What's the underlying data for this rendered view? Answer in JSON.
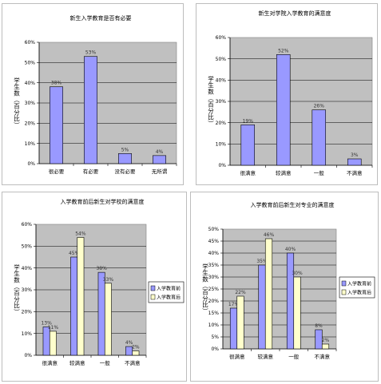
{
  "chart_data": [
    {
      "type": "bar",
      "title": "新生入学教育是否有必要",
      "ylabel": "学生数（百分比）",
      "categories": [
        "很必要",
        "有必要",
        "没有必要",
        "无所谓"
      ],
      "series": [
        {
          "values": [
            38,
            53,
            5,
            4
          ],
          "labels": [
            "38%",
            "53%",
            "5%",
            "4%"
          ]
        }
      ],
      "ylim": [
        0,
        60
      ],
      "yticks": [
        "0%",
        "10%",
        "20%",
        "30%",
        "40%",
        "50%",
        "60%"
      ],
      "grid": true,
      "colors": {
        "series": [
          "#9999ff"
        ],
        "plot_bg": "#c0c0c0"
      }
    },
    {
      "type": "bar",
      "title": "新生对学院入学教育的满意度",
      "ylabel": "学生数（百分比）",
      "categories": [
        "很满意",
        "较满意",
        "一般",
        "不满意"
      ],
      "series": [
        {
          "values": [
            19,
            52,
            26,
            3
          ],
          "labels": [
            "19%",
            "52%",
            "26%",
            "3%"
          ]
        }
      ],
      "ylim": [
        0,
        60
      ],
      "yticks": [
        "0%",
        "10%",
        "20%",
        "30%",
        "40%",
        "50%",
        "60%"
      ],
      "grid": true,
      "colors": {
        "series": [
          "#9999ff"
        ],
        "plot_bg": "#c0c0c0"
      }
    },
    {
      "type": "bar",
      "title": "入学教育前后新生对学校的满意度",
      "ylabel": "学生数（百分比）",
      "categories": [
        "很满意",
        "较满意",
        "一般",
        "不满意"
      ],
      "series": [
        {
          "name": "入学教育前",
          "values": [
            13,
            45,
            38,
            4
          ],
          "labels": [
            "13%",
            "45%",
            "38%",
            "4%"
          ]
        },
        {
          "name": "入学教育后",
          "values": [
            11,
            54,
            33,
            2
          ],
          "labels": [
            "11%",
            "54%",
            "33%",
            "2%"
          ]
        }
      ],
      "ylim": [
        0,
        60
      ],
      "yticks": [
        "0%",
        "10%",
        "20%",
        "30%",
        "40%",
        "50%",
        "60%"
      ],
      "grid": true,
      "legend": "right",
      "colors": {
        "series": [
          "#9999ff",
          "#ffffcc"
        ],
        "plot_bg": "#c0c0c0"
      }
    },
    {
      "type": "bar",
      "title": "入学教育前后新生对专业的满意度",
      "ylabel": "学生数（百分比）",
      "categories": [
        "很满意",
        "较满意",
        "一般",
        "不满意"
      ],
      "series": [
        {
          "name": "入学教育前",
          "values": [
            17,
            35,
            40,
            8
          ],
          "labels": [
            "17%",
            "35%",
            "40%",
            "8%"
          ]
        },
        {
          "name": "入学教育后",
          "values": [
            22,
            46,
            30,
            2
          ],
          "labels": [
            "22%",
            "46%",
            "30%",
            "2%"
          ]
        }
      ],
      "ylim": [
        0,
        50
      ],
      "yticks": [
        "0%",
        "5%",
        "10%",
        "15%",
        "20%",
        "25%",
        "30%",
        "35%",
        "40%",
        "45%",
        "50%"
      ],
      "grid": true,
      "legend": "right",
      "colors": {
        "series": [
          "#9999ff",
          "#ffffcc"
        ],
        "plot_bg": "#c0c0c0"
      }
    }
  ]
}
